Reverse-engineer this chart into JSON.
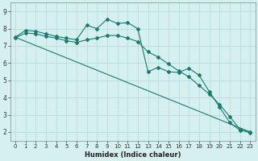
{
  "xlabel": "Humidex (Indice chaleur)",
  "bg_color": "#d6f0f0",
  "grid_color": "#b8dede",
  "line_color": "#1a7a6e",
  "xlim": [
    -0.5,
    23.5
  ],
  "ylim": [
    1.5,
    9.5
  ],
  "xticks": [
    0,
    1,
    2,
    3,
    4,
    5,
    6,
    7,
    8,
    9,
    10,
    11,
    12,
    13,
    14,
    15,
    16,
    17,
    18,
    19,
    20,
    21,
    22,
    23
  ],
  "yticks": [
    2,
    3,
    4,
    5,
    6,
    7,
    8,
    9
  ],
  "line1_x": [
    0,
    1,
    2,
    3,
    4,
    5,
    6,
    7,
    8,
    9,
    10,
    11,
    12,
    13,
    14,
    15,
    16,
    17,
    18,
    19,
    20,
    21,
    22,
    23
  ],
  "line1_y": [
    7.5,
    7.9,
    7.85,
    7.7,
    7.55,
    7.45,
    7.35,
    8.2,
    8.0,
    8.55,
    8.3,
    8.35,
    8.0,
    5.5,
    5.75,
    5.5,
    5.45,
    5.7,
    5.3,
    4.35,
    3.45,
    2.55,
    2.1,
    2.0
  ],
  "line2_x": [
    0,
    23
  ],
  "line2_y": [
    7.5,
    2.0
  ],
  "line3_x": [
    0,
    1,
    2,
    3,
    4,
    5,
    6,
    7,
    8,
    9,
    10,
    11,
    12,
    13,
    14,
    15,
    16,
    17,
    18,
    19,
    20,
    21,
    22,
    23
  ],
  "line3_y": [
    7.45,
    7.75,
    7.7,
    7.55,
    7.45,
    7.3,
    7.2,
    7.35,
    7.45,
    7.6,
    7.6,
    7.45,
    7.25,
    6.65,
    6.35,
    5.95,
    5.55,
    5.2,
    4.7,
    4.2,
    3.6,
    2.9,
    2.15,
    1.95
  ],
  "xlabel_fontsize": 6.0,
  "tick_fontsize": 5.0,
  "lw": 0.8,
  "marker_size": 2.0
}
